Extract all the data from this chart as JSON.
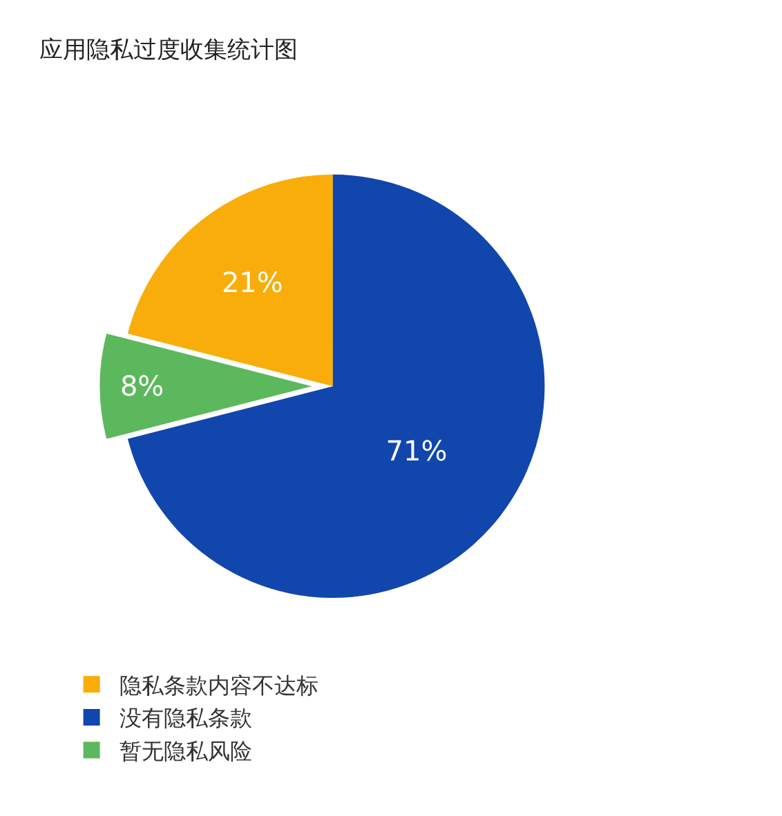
{
  "chart_data": {
    "type": "pie",
    "title": "应用隐私过度收集统计图",
    "categories": [
      "隐私条款内容不达标",
      "没有隐私条款",
      "暂无隐私风险"
    ],
    "values": [
      21,
      71,
      8
    ],
    "colors": [
      "#f9ad0a",
      "#1146ac",
      "#5cb85c"
    ],
    "value_labels": [
      "21%",
      "71%",
      "8%"
    ],
    "legend": "bottom left"
  }
}
